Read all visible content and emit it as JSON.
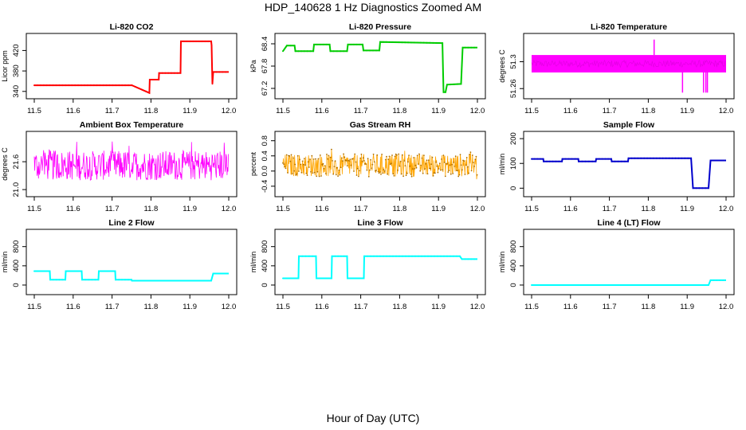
{
  "figure": {
    "title": "HDP_140628  1 Hz Diagnostics Zoomed AM",
    "xlabel": "Hour of Day (UTC)"
  },
  "colors": {
    "red": "#ff0000",
    "green": "#00cc00",
    "magenta": "#ff00ff",
    "orange": "#ffa500",
    "blue": "#0000cc",
    "cyan": "#00ffff"
  },
  "chart_data": [
    {
      "type": "line",
      "title": "Li-820 CO2",
      "ylabel": "Licor ppm",
      "color": "#ff0000",
      "xticks": [
        11.5,
        11.6,
        11.7,
        11.8,
        11.9,
        12.0
      ],
      "xlim": [
        11.5,
        12.0
      ],
      "yticks": [
        340,
        380,
        420
      ],
      "ylim": [
        335,
        444
      ],
      "series": [
        {
          "x": [
            11.5,
            11.75,
            11.751,
            11.796,
            11.797,
            11.82,
            11.821,
            11.876,
            11.877,
            11.955,
            11.956,
            11.958,
            11.96,
            12.0
          ],
          "y": [
            352,
            352,
            352,
            337,
            363,
            363,
            376,
            376,
            438,
            438,
            430,
            355,
            378,
            378
          ]
        }
      ]
    },
    {
      "type": "line",
      "title": "Li-820 Pressure",
      "ylabel": "kPa",
      "color": "#00cc00",
      "xticks": [
        11.5,
        11.6,
        11.7,
        11.8,
        11.9,
        12.0
      ],
      "xlim": [
        11.5,
        12.0
      ],
      "yticks": [
        67.2,
        67.8,
        68.4
      ],
      "ylim": [
        67.05,
        68.55
      ],
      "series": [
        {
          "x": [
            11.5,
            11.51,
            11.53,
            11.532,
            11.578,
            11.58,
            11.62,
            11.622,
            11.665,
            11.667,
            11.705,
            11.707,
            11.748,
            11.75,
            11.91,
            11.913,
            11.918,
            11.922,
            11.958,
            11.962,
            11.968,
            12.0
          ],
          "y": [
            68.2,
            68.35,
            68.35,
            68.2,
            68.2,
            68.38,
            68.38,
            68.2,
            68.2,
            68.38,
            68.38,
            68.22,
            68.22,
            68.45,
            68.42,
            67.1,
            67.1,
            67.3,
            67.32,
            68.3,
            68.3,
            68.3
          ]
        }
      ]
    },
    {
      "type": "line",
      "title": "Li-820 Temperature",
      "ylabel": "degrees C",
      "color": "#ff00ff",
      "xticks": [
        11.5,
        11.6,
        11.7,
        11.8,
        11.9,
        12.0
      ],
      "xlim": [
        11.5,
        12.0
      ],
      "yticks": [
        51.26,
        51.3
      ],
      "ylim": [
        51.252,
        51.335
      ],
      "band": [
        11.5,
        12.0,
        51.284,
        51.31
      ],
      "spikes": [
        {
          "x": 11.815,
          "y": 51.333
        },
        {
          "x": 11.888,
          "y": 51.254
        },
        {
          "x": 11.942,
          "y": 51.254
        },
        {
          "x": 11.948,
          "y": 51.254
        },
        {
          "x": 11.952,
          "y": 51.254
        }
      ]
    },
    {
      "type": "line",
      "title": "Ambient Box Temperature",
      "ylabel": "degrees C",
      "color": "#ff00ff",
      "xticks": [
        11.5,
        11.6,
        11.7,
        11.8,
        11.9,
        12.0
      ],
      "xlim": [
        11.5,
        12.0
      ],
      "yticks": [
        21.0,
        21.6
      ],
      "ylim": [
        20.95,
        22.15
      ],
      "noise": {
        "center": 21.52,
        "amplitude": 0.32,
        "spike": 0.55
      }
    },
    {
      "type": "line",
      "title": "Gas Stream RH",
      "ylabel": "percent",
      "color": "#ffa500",
      "xticks": [
        11.5,
        11.6,
        11.7,
        11.8,
        11.9,
        12.0
      ],
      "xlim": [
        11.5,
        12.0
      ],
      "yticks": [
        -0.4,
        0.0,
        0.4,
        0.8
      ],
      "ylim": [
        -0.55,
        0.92
      ],
      "noise": {
        "center": 0.15,
        "amplitude": 0.3,
        "spike": 0.45
      }
    },
    {
      "type": "line",
      "title": "Sample Flow",
      "ylabel": "ml/min",
      "color": "#0000cc",
      "xticks": [
        11.5,
        11.6,
        11.7,
        11.8,
        11.9,
        12.0
      ],
      "xlim": [
        11.5,
        12.0
      ],
      "yticks": [
        0,
        100,
        200
      ],
      "ylim": [
        -15,
        210
      ],
      "series": [
        {
          "x": [
            11.5,
            11.53,
            11.531,
            11.578,
            11.579,
            11.62,
            11.621,
            11.665,
            11.666,
            11.705,
            11.706,
            11.748,
            11.749,
            11.91,
            11.915,
            11.955,
            11.96,
            12.0
          ],
          "y": [
            118,
            118,
            108,
            108,
            118,
            118,
            108,
            108,
            118,
            118,
            108,
            108,
            121,
            121,
            0,
            0,
            112,
            112
          ]
        }
      ]
    },
    {
      "type": "line",
      "title": "Line 2 Flow",
      "ylabel": "ml/min",
      "color": "#00ffff",
      "xticks": [
        11.5,
        11.6,
        11.7,
        11.8,
        11.9,
        12.0
      ],
      "xlim": [
        11.5,
        12.0
      ],
      "yticks": [
        0,
        400,
        800
      ],
      "ylim": [
        -100,
        1060
      ],
      "series": [
        {
          "x": [
            11.5,
            11.54,
            11.541,
            11.58,
            11.581,
            11.622,
            11.623,
            11.665,
            11.666,
            11.708,
            11.709,
            11.75,
            11.751,
            11.955,
            11.96,
            12.0
          ],
          "y": [
            290,
            290,
            110,
            110,
            290,
            290,
            110,
            110,
            290,
            290,
            110,
            110,
            90,
            90,
            240,
            240
          ]
        }
      ]
    },
    {
      "type": "line",
      "title": "Line 3 Flow",
      "ylabel": "ml/min",
      "color": "#00ffff",
      "xticks": [
        11.5,
        11.6,
        11.7,
        11.8,
        11.9,
        12.0
      ],
      "xlim": [
        11.5,
        12.0
      ],
      "yticks": [
        0,
        400,
        800
      ],
      "ylim": [
        -100,
        1060
      ],
      "series": [
        {
          "x": [
            11.5,
            11.54,
            11.541,
            11.585,
            11.586,
            11.625,
            11.626,
            11.665,
            11.666,
            11.708,
            11.709,
            11.955,
            11.96,
            12.0
          ],
          "y": [
            140,
            140,
            600,
            600,
            140,
            140,
            600,
            600,
            140,
            140,
            600,
            600,
            540,
            540
          ]
        }
      ]
    },
    {
      "type": "line",
      "title": "Line 4 (LT) Flow",
      "ylabel": "ml/min",
      "color": "#00ffff",
      "xticks": [
        11.5,
        11.6,
        11.7,
        11.8,
        11.9,
        12.0
      ],
      "xlim": [
        11.5,
        12.0
      ],
      "yticks": [
        0,
        400,
        800
      ],
      "ylim": [
        -100,
        1060
      ],
      "series": [
        {
          "x": [
            11.5,
            11.955,
            11.96,
            12.0
          ],
          "y": [
            0,
            0,
            100,
            100
          ]
        }
      ]
    }
  ]
}
